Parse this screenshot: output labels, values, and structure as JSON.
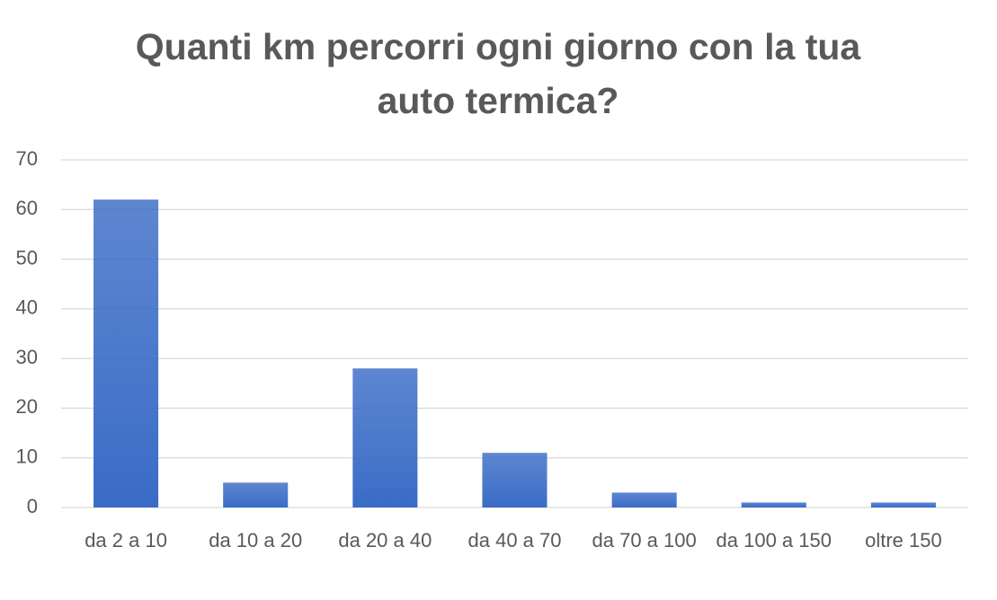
{
  "chart_data": {
    "type": "bar",
    "title": "Quanti km percorri ogni giorno con la tua auto termica?",
    "categories": [
      "da 2 a 10",
      "da 10 a 20",
      "da 20 a 40",
      "da 40 a 70",
      "da 70 a 100",
      "da 100 a 150",
      "oltre 150"
    ],
    "values": [
      62,
      5,
      28,
      11,
      3,
      1,
      1
    ],
    "color": "#3a6cc6",
    "ylim": [
      0,
      70
    ],
    "yticks": [
      0,
      10,
      20,
      30,
      40,
      50,
      60,
      70
    ],
    "grid": true
  }
}
